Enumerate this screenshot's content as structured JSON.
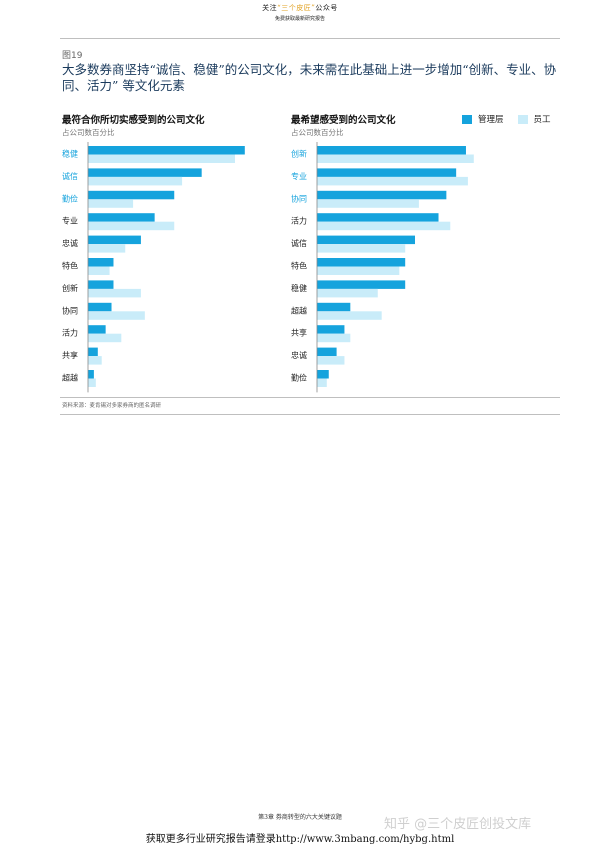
{
  "banner": {
    "line1_pre": "关注",
    "line1_highlight": "“三个皮匠”",
    "line1_post": "公众号",
    "line2": "免费获取最新研究报告"
  },
  "figure": {
    "number": "图19",
    "title": "大多数券商坚持“诚信、稳健”的公司文化，未来需在此基础上进一步增加“创新、专业、协同、活力” 等文化元素"
  },
  "legend": {
    "manager_label": "管理层",
    "employee_label": "员工",
    "manager_color": "#15a3dd",
    "employee_color": "#c9ecf9"
  },
  "chart_data": [
    {
      "type": "bar",
      "orientation": "horizontal",
      "title": "最符合你所切实感受到的公司文化",
      "subtitle": "占公司数百分比",
      "categories": [
        "稳健",
        "诚信",
        "勤俭",
        "专业",
        "忠诚",
        "特色",
        "创新",
        "协同",
        "活力",
        "共享",
        "超越"
      ],
      "highlighted_categories": [
        "稳健",
        "诚信",
        "勤俭"
      ],
      "series": [
        {
          "name": "管理层",
          "values": [
            80,
            58,
            44,
            34,
            27,
            13,
            13,
            12,
            9,
            5,
            3
          ]
        },
        {
          "name": "员工",
          "values": [
            75,
            48,
            23,
            44,
            19,
            11,
            27,
            29,
            17,
            7,
            4
          ]
        }
      ],
      "xlim": [
        0,
        100
      ],
      "grid": false,
      "legend_position": "top-right"
    },
    {
      "type": "bar",
      "orientation": "horizontal",
      "title": "最希望感受到的公司文化",
      "subtitle": "占公司数百分比",
      "categories": [
        "创新",
        "专业",
        "协同",
        "活力",
        "诚信",
        "特色",
        "稳健",
        "超越",
        "共享",
        "忠诚",
        "勤俭"
      ],
      "highlighted_categories": [
        "创新",
        "专业",
        "协同"
      ],
      "series": [
        {
          "name": "管理层",
          "values": [
            76,
            71,
            66,
            62,
            50,
            45,
            45,
            17,
            14,
            10,
            6
          ]
        },
        {
          "name": "员工",
          "values": [
            80,
            77,
            52,
            68,
            45,
            42,
            31,
            33,
            17,
            14,
            5
          ]
        }
      ],
      "xlim": [
        0,
        100
      ],
      "grid": false,
      "legend_position": "top-right"
    }
  ],
  "source": "资料来源：麦肯锡对多家券商的匿名调研",
  "footer": {
    "chapter": "第3章 券商转型的六大关键议题",
    "link": "获取更多行业研究报告请登录http://www.3mbang.com/hybg.html",
    "watermark": "知乎 @三个皮匠创投文库"
  }
}
